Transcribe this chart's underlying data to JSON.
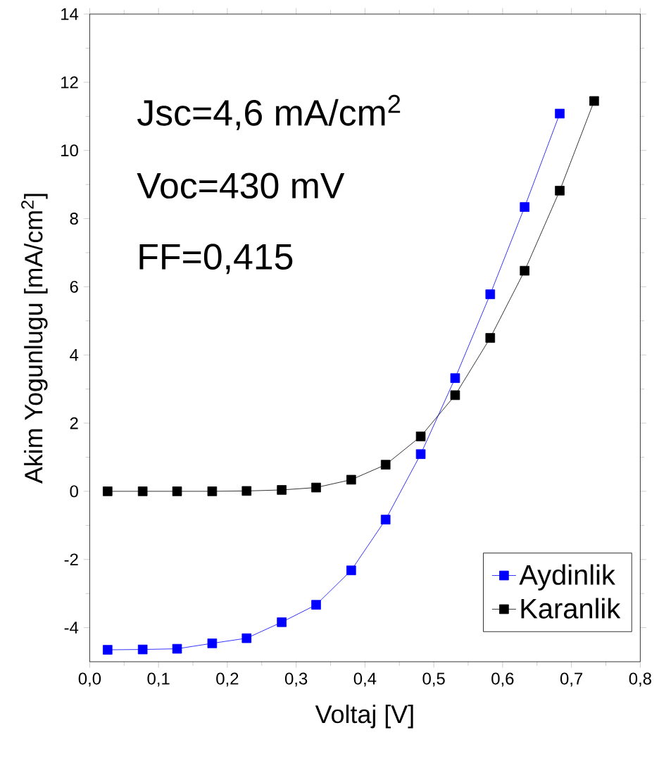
{
  "chart_data": {
    "type": "line",
    "xlabel": "Voltaj [V]",
    "ylabel": "Akim Yogunlugu [mA/cm$^{2}$]",
    "x": [
      0.026,
      0.077,
      0.127,
      0.178,
      0.228,
      0.279,
      0.329,
      0.38,
      0.43,
      0.481,
      0.531,
      0.582,
      0.632,
      0.683,
      0.733
    ],
    "series": [
      {
        "name": "Aydinlik",
        "color": "#0000ff",
        "values": [
          -4.65,
          -4.64,
          -4.62,
          -4.46,
          -4.31,
          -3.84,
          -3.33,
          -2.32,
          -0.83,
          1.09,
          3.32,
          5.78,
          8.34,
          11.08,
          null
        ]
      },
      {
        "name": "Karanlik",
        "color": "#000000",
        "values": [
          0,
          0,
          0,
          0,
          0.01,
          0.04,
          0.11,
          0.34,
          0.78,
          1.61,
          2.82,
          4.5,
          6.47,
          8.82,
          11.45
        ]
      }
    ],
    "xlim": [
      0,
      0.8
    ],
    "ylim": [
      -5,
      14
    ],
    "xticks": [
      {
        "value": 0,
        "label": "0,0"
      },
      {
        "value": 0.1,
        "label": "0,1"
      },
      {
        "value": 0.2,
        "label": "0,2"
      },
      {
        "value": 0.3,
        "label": "0,3"
      },
      {
        "value": 0.4,
        "label": "0,4"
      },
      {
        "value": 0.5,
        "label": "0,5"
      },
      {
        "value": 0.6,
        "label": "0,6"
      },
      {
        "value": 0.7,
        "label": "0,7"
      },
      {
        "value": 0.8,
        "label": "0,8"
      }
    ],
    "yticks": [
      -4,
      -2,
      0,
      2,
      4,
      6,
      8,
      10,
      12,
      14
    ],
    "annotations": [
      "Jsc=4,6 mA/cm$^{2}$",
      "Voc=430 mV",
      "FF=0,415"
    ],
    "legend": "bottom right",
    "marker": "square",
    "line_style": "solid",
    "grid": false
  }
}
